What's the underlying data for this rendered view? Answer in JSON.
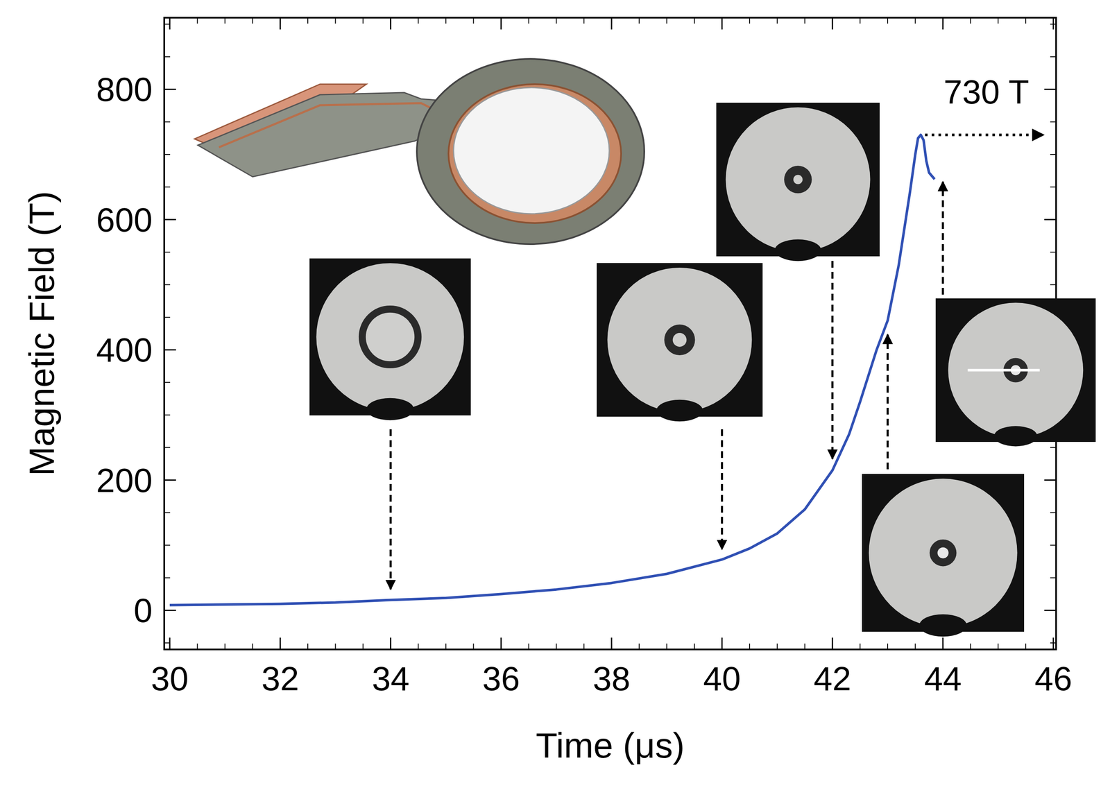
{
  "chart_data": {
    "type": "line",
    "xlabel": "Time (μs)",
    "ylabel": "Magnetic Field (T)",
    "x": [
      30,
      31,
      32,
      33,
      34,
      35,
      36,
      37,
      38,
      39,
      40,
      40.5,
      41,
      41.5,
      42,
      42.3,
      42.5,
      42.8,
      43,
      43.2,
      43.4,
      43.5,
      43.55,
      43.6,
      43.65,
      43.7,
      43.75,
      43.85
    ],
    "series": [
      {
        "name": "Magnetic Field",
        "color": "#3050b4",
        "values": [
          8,
          9,
          10,
          12,
          16,
          19,
          25,
          32,
          42,
          56,
          78,
          95,
          118,
          155,
          215,
          270,
          320,
          400,
          445,
          530,
          640,
          700,
          725,
          730,
          722,
          690,
          672,
          662
        ]
      }
    ],
    "xlim": [
      29.9,
      46.05
    ],
    "ylim": [
      -60,
      910
    ],
    "xticks": [
      30,
      32,
      34,
      36,
      38,
      40,
      42,
      44,
      46
    ],
    "yticks": [
      0,
      200,
      400,
      600,
      800
    ],
    "snapshot_times": [
      34,
      40,
      42,
      43,
      44
    ],
    "annotations": [
      {
        "text": "730 T",
        "x": 43.6,
        "y": 730
      }
    ],
    "grid": false
  }
}
